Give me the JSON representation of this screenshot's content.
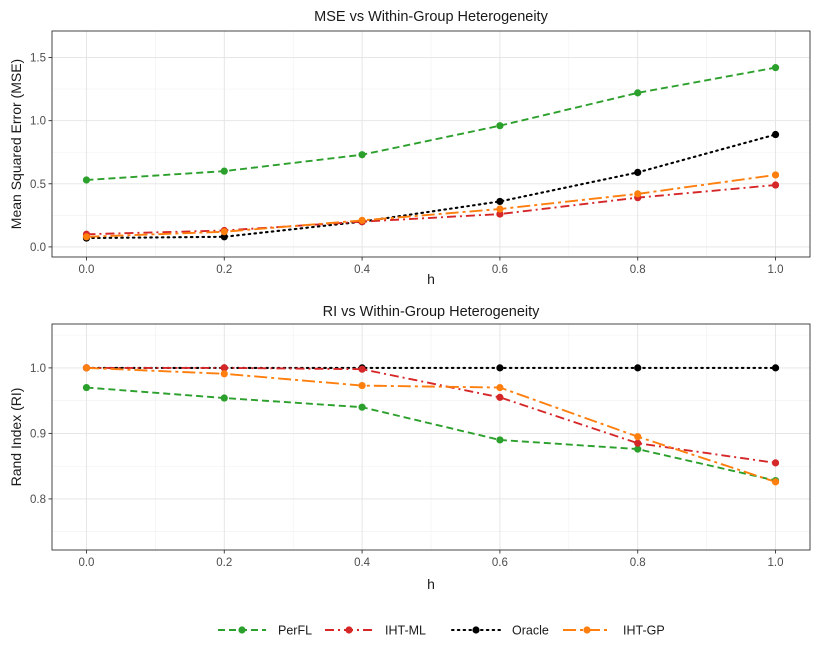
{
  "chart_data": [
    {
      "type": "line",
      "title": "MSE vs Within-Group Heterogeneity",
      "xlabel": "h",
      "ylabel": "Mean Squared Error (MSE)",
      "x": [
        0.0,
        0.2,
        0.4,
        0.6,
        0.8,
        1.0
      ],
      "xlim": [
        -0.05,
        1.05
      ],
      "ylim": [
        -0.08,
        1.71
      ],
      "xticks": [
        0.0,
        0.2,
        0.4,
        0.6,
        0.8,
        1.0
      ],
      "xtick_labels": [
        "0.0",
        "0.2",
        "0.4",
        "0.6",
        "0.8",
        "1.0"
      ],
      "yticks": [
        0.0,
        0.5,
        1.0,
        1.5
      ],
      "ytick_labels": [
        "0.0",
        "0.5",
        "1.0",
        "1.5"
      ],
      "grid": true,
      "series": [
        {
          "name": "PerFL",
          "values": [
            0.53,
            0.6,
            0.73,
            0.96,
            1.22,
            1.42
          ]
        },
        {
          "name": "IHT-ML",
          "values": [
            0.1,
            0.13,
            0.2,
            0.26,
            0.39,
            0.49
          ]
        },
        {
          "name": "Oracle",
          "values": [
            0.07,
            0.08,
            0.2,
            0.36,
            0.59,
            0.89
          ]
        },
        {
          "name": "IHT-GP",
          "values": [
            0.08,
            0.12,
            0.21,
            0.3,
            0.42,
            0.57
          ]
        }
      ]
    },
    {
      "type": "line",
      "title": "RI vs Within-Group Heterogeneity",
      "xlabel": "h",
      "ylabel": "Rand Index (RI)",
      "x": [
        0.0,
        0.2,
        0.4,
        0.6,
        0.8,
        1.0
      ],
      "xlim": [
        -0.05,
        1.05
      ],
      "ylim": [
        0.722,
        1.067
      ],
      "xticks": [
        0.0,
        0.2,
        0.4,
        0.6,
        0.8,
        1.0
      ],
      "xtick_labels": [
        "0.0",
        "0.2",
        "0.4",
        "0.6",
        "0.8",
        "1.0"
      ],
      "yticks": [
        0.8,
        0.9,
        1.0
      ],
      "ytick_labels": [
        "0.8",
        "0.9",
        "1.0"
      ],
      "grid": true,
      "series": [
        {
          "name": "PerFL",
          "values": [
            0.97,
            0.954,
            0.94,
            0.89,
            0.876,
            0.828
          ]
        },
        {
          "name": "IHT-ML",
          "values": [
            1.0,
            1.0,
            0.998,
            0.955,
            0.885,
            0.855
          ]
        },
        {
          "name": "Oracle",
          "values": [
            1.0,
            1.0,
            1.0,
            1.0,
            1.0,
            1.0
          ]
        },
        {
          "name": "IHT-GP",
          "values": [
            1.0,
            0.991,
            0.973,
            0.97,
            0.895,
            0.826
          ]
        }
      ]
    }
  ],
  "legend": {
    "position": "bottom",
    "items": [
      {
        "name": "PerFL",
        "color": "#2ca02c",
        "dash": "long-dash"
      },
      {
        "name": "IHT-ML",
        "color": "#d62728",
        "dash": "dash-dot"
      },
      {
        "name": "Oracle",
        "color": "#000000",
        "dash": "dotted"
      },
      {
        "name": "IHT-GP",
        "color": "#ff7f0e",
        "dash": "long-dash-dot"
      }
    ]
  }
}
